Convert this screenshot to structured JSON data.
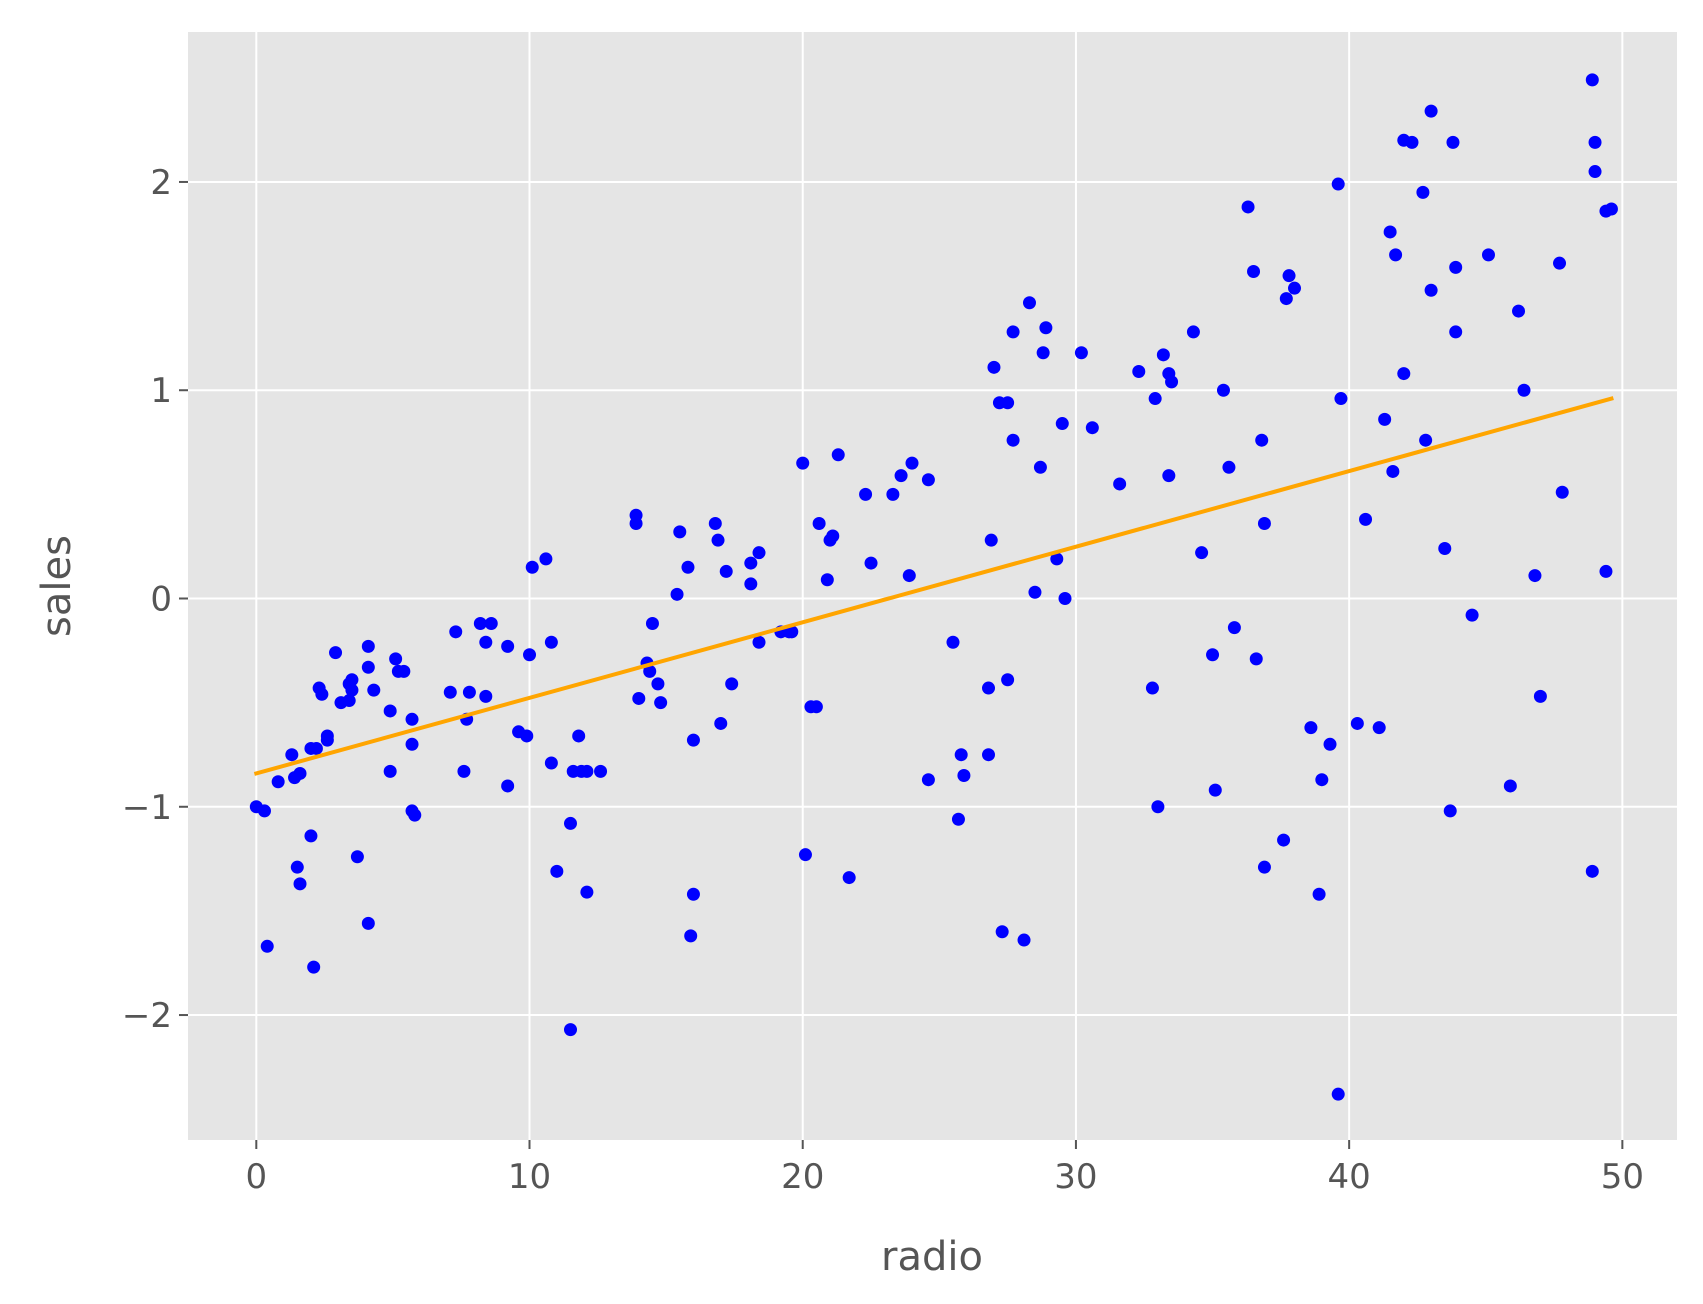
{
  "chart_data": {
    "type": "scatter",
    "title": "",
    "xlabel": "radio",
    "ylabel": "sales",
    "xlim": [
      -2.5,
      52.0
    ],
    "ylim": [
      -2.6,
      2.72
    ],
    "xticks": [
      0,
      10,
      20,
      30,
      40,
      50
    ],
    "yticks": [
      -2,
      -1,
      0,
      1,
      2
    ],
    "xtick_labels": [
      "0",
      "10",
      "20",
      "30",
      "40",
      "50"
    ],
    "ytick_labels": [
      "−2",
      "−1",
      "0",
      "1",
      "2"
    ],
    "grid": true,
    "background_color": "#e5e5e5",
    "point_color": "#0000ff",
    "line_color": "#ffa500",
    "fit_line": {
      "x": [
        0,
        49.6
      ],
      "y": [
        -0.84,
        0.96
      ]
    },
    "points": [
      [
        0.0,
        -1.0
      ],
      [
        0.3,
        -1.02
      ],
      [
        0.4,
        -1.67
      ],
      [
        0.8,
        -0.88
      ],
      [
        1.3,
        -0.75
      ],
      [
        1.4,
        -0.86
      ],
      [
        1.5,
        -1.29
      ],
      [
        1.6,
        -1.37
      ],
      [
        1.6,
        -0.84
      ],
      [
        2.0,
        -1.14
      ],
      [
        2.0,
        -0.72
      ],
      [
        2.1,
        -1.77
      ],
      [
        2.2,
        -0.72
      ],
      [
        2.3,
        -0.43
      ],
      [
        2.4,
        -0.46
      ],
      [
        2.6,
        -0.68
      ],
      [
        2.6,
        -0.66
      ],
      [
        2.9,
        -0.26
      ],
      [
        3.1,
        -0.5
      ],
      [
        3.4,
        -0.49
      ],
      [
        3.4,
        -0.41
      ],
      [
        3.5,
        -0.39
      ],
      [
        3.5,
        -0.44
      ],
      [
        3.7,
        -1.24
      ],
      [
        4.1,
        -0.33
      ],
      [
        4.1,
        -0.23
      ],
      [
        4.1,
        -1.56
      ],
      [
        4.3,
        -0.44
      ],
      [
        4.9,
        -0.54
      ],
      [
        4.9,
        -0.83
      ],
      [
        5.1,
        -0.29
      ],
      [
        5.2,
        -0.35
      ],
      [
        5.4,
        -0.35
      ],
      [
        5.7,
        -0.58
      ],
      [
        5.7,
        -0.7
      ],
      [
        5.7,
        -1.02
      ],
      [
        5.8,
        -1.04
      ],
      [
        7.1,
        -0.45
      ],
      [
        7.3,
        -0.16
      ],
      [
        7.6,
        -0.83
      ],
      [
        7.7,
        -0.58
      ],
      [
        7.8,
        -0.45
      ],
      [
        8.2,
        -0.12
      ],
      [
        8.4,
        -0.47
      ],
      [
        8.4,
        -0.21
      ],
      [
        8.6,
        -0.12
      ],
      [
        9.2,
        -0.23
      ],
      [
        9.2,
        -0.9
      ],
      [
        9.6,
        -0.64
      ],
      [
        9.9,
        -0.66
      ],
      [
        10.0,
        -0.27
      ],
      [
        10.1,
        0.15
      ],
      [
        10.6,
        0.19
      ],
      [
        10.8,
        -0.21
      ],
      [
        10.8,
        -0.79
      ],
      [
        11.0,
        -1.31
      ],
      [
        11.5,
        -1.08
      ],
      [
        11.5,
        -2.07
      ],
      [
        11.6,
        -0.83
      ],
      [
        11.8,
        -0.66
      ],
      [
        11.9,
        -0.83
      ],
      [
        12.1,
        -1.41
      ],
      [
        12.1,
        -0.83
      ],
      [
        12.6,
        -0.83
      ],
      [
        13.9,
        0.4
      ],
      [
        13.9,
        0.36
      ],
      [
        14.0,
        -0.48
      ],
      [
        14.3,
        -0.31
      ],
      [
        14.4,
        -0.35
      ],
      [
        14.5,
        -0.12
      ],
      [
        14.7,
        -0.41
      ],
      [
        14.8,
        -0.5
      ],
      [
        15.4,
        0.02
      ],
      [
        15.5,
        0.32
      ],
      [
        15.8,
        0.15
      ],
      [
        15.9,
        -1.62
      ],
      [
        16.0,
        -0.68
      ],
      [
        16.0,
        -1.42
      ],
      [
        16.8,
        0.36
      ],
      [
        16.9,
        0.28
      ],
      [
        17.0,
        -0.6
      ],
      [
        17.2,
        0.13
      ],
      [
        17.4,
        -0.41
      ],
      [
        18.1,
        0.17
      ],
      [
        18.1,
        0.07
      ],
      [
        18.4,
        0.22
      ],
      [
        18.4,
        -0.21
      ],
      [
        19.2,
        -0.16
      ],
      [
        19.5,
        -0.16
      ],
      [
        19.6,
        -0.16
      ],
      [
        20.0,
        0.65
      ],
      [
        20.1,
        -1.23
      ],
      [
        20.3,
        -0.52
      ],
      [
        20.5,
        -0.52
      ],
      [
        20.6,
        0.36
      ],
      [
        20.9,
        0.09
      ],
      [
        21.0,
        0.28
      ],
      [
        21.1,
        0.3
      ],
      [
        21.3,
        0.69
      ],
      [
        21.7,
        -1.34
      ],
      [
        22.3,
        0.5
      ],
      [
        22.5,
        0.17
      ],
      [
        23.3,
        0.5
      ],
      [
        23.6,
        0.59
      ],
      [
        23.9,
        0.11
      ],
      [
        24.0,
        0.65
      ],
      [
        24.6,
        0.57
      ],
      [
        24.6,
        -0.87
      ],
      [
        25.5,
        -0.21
      ],
      [
        25.7,
        -1.06
      ],
      [
        25.8,
        -0.75
      ],
      [
        25.9,
        -0.85
      ],
      [
        26.8,
        -0.43
      ],
      [
        26.8,
        -0.75
      ],
      [
        26.9,
        0.28
      ],
      [
        27.0,
        1.11
      ],
      [
        27.2,
        0.94
      ],
      [
        27.3,
        -1.6
      ],
      [
        27.5,
        0.94
      ],
      [
        27.5,
        -0.39
      ],
      [
        27.7,
        1.28
      ],
      [
        27.7,
        0.76
      ],
      [
        28.1,
        -1.64
      ],
      [
        28.3,
        1.42
      ],
      [
        28.5,
        0.03
      ],
      [
        28.7,
        0.63
      ],
      [
        28.8,
        1.18
      ],
      [
        28.9,
        1.3
      ],
      [
        29.3,
        0.19
      ],
      [
        29.5,
        0.84
      ],
      [
        29.6,
        0.0
      ],
      [
        30.2,
        1.18
      ],
      [
        30.6,
        0.82
      ],
      [
        31.6,
        0.55
      ],
      [
        32.3,
        1.09
      ],
      [
        32.8,
        -0.43
      ],
      [
        32.9,
        0.96
      ],
      [
        33.0,
        -1.0
      ],
      [
        33.2,
        1.17
      ],
      [
        33.4,
        0.59
      ],
      [
        33.4,
        1.08
      ],
      [
        33.5,
        1.04
      ],
      [
        34.3,
        1.28
      ],
      [
        34.6,
        0.22
      ],
      [
        35.0,
        -0.27
      ],
      [
        35.1,
        -0.92
      ],
      [
        35.4,
        1.0
      ],
      [
        35.6,
        0.63
      ],
      [
        35.8,
        -0.14
      ],
      [
        36.3,
        1.88
      ],
      [
        36.5,
        1.57
      ],
      [
        36.6,
        -0.29
      ],
      [
        36.8,
        0.76
      ],
      [
        36.9,
        -1.29
      ],
      [
        36.9,
        0.36
      ],
      [
        37.6,
        -1.16
      ],
      [
        37.7,
        1.44
      ],
      [
        37.8,
        1.55
      ],
      [
        38.0,
        1.49
      ],
      [
        38.6,
        -0.62
      ],
      [
        38.9,
        -1.42
      ],
      [
        39.0,
        -0.87
      ],
      [
        39.3,
        -0.7
      ],
      [
        39.6,
        1.99
      ],
      [
        39.6,
        -2.38
      ],
      [
        39.7,
        0.96
      ],
      [
        40.3,
        -0.6
      ],
      [
        40.6,
        0.38
      ],
      [
        41.1,
        -0.62
      ],
      [
        41.3,
        0.86
      ],
      [
        41.5,
        1.76
      ],
      [
        41.6,
        0.61
      ],
      [
        41.7,
        1.65
      ],
      [
        42.0,
        2.2
      ],
      [
        42.0,
        1.08
      ],
      [
        42.3,
        2.19
      ],
      [
        42.7,
        1.95
      ],
      [
        42.8,
        0.76
      ],
      [
        43.0,
        2.34
      ],
      [
        43.0,
        1.48
      ],
      [
        43.5,
        0.24
      ],
      [
        43.7,
        -1.02
      ],
      [
        43.8,
        2.19
      ],
      [
        43.9,
        1.59
      ],
      [
        43.9,
        1.28
      ],
      [
        44.5,
        -0.08
      ],
      [
        45.1,
        1.65
      ],
      [
        45.9,
        -0.9
      ],
      [
        46.2,
        1.38
      ],
      [
        46.4,
        1.0
      ],
      [
        46.8,
        0.11
      ],
      [
        47.0,
        -0.47
      ],
      [
        47.7,
        1.61
      ],
      [
        47.8,
        0.51
      ],
      [
        48.9,
        2.49
      ],
      [
        48.9,
        -1.31
      ],
      [
        49.0,
        2.19
      ],
      [
        49.0,
        2.05
      ],
      [
        49.4,
        1.86
      ],
      [
        49.4,
        0.13
      ],
      [
        49.6,
        1.87
      ]
    ]
  }
}
